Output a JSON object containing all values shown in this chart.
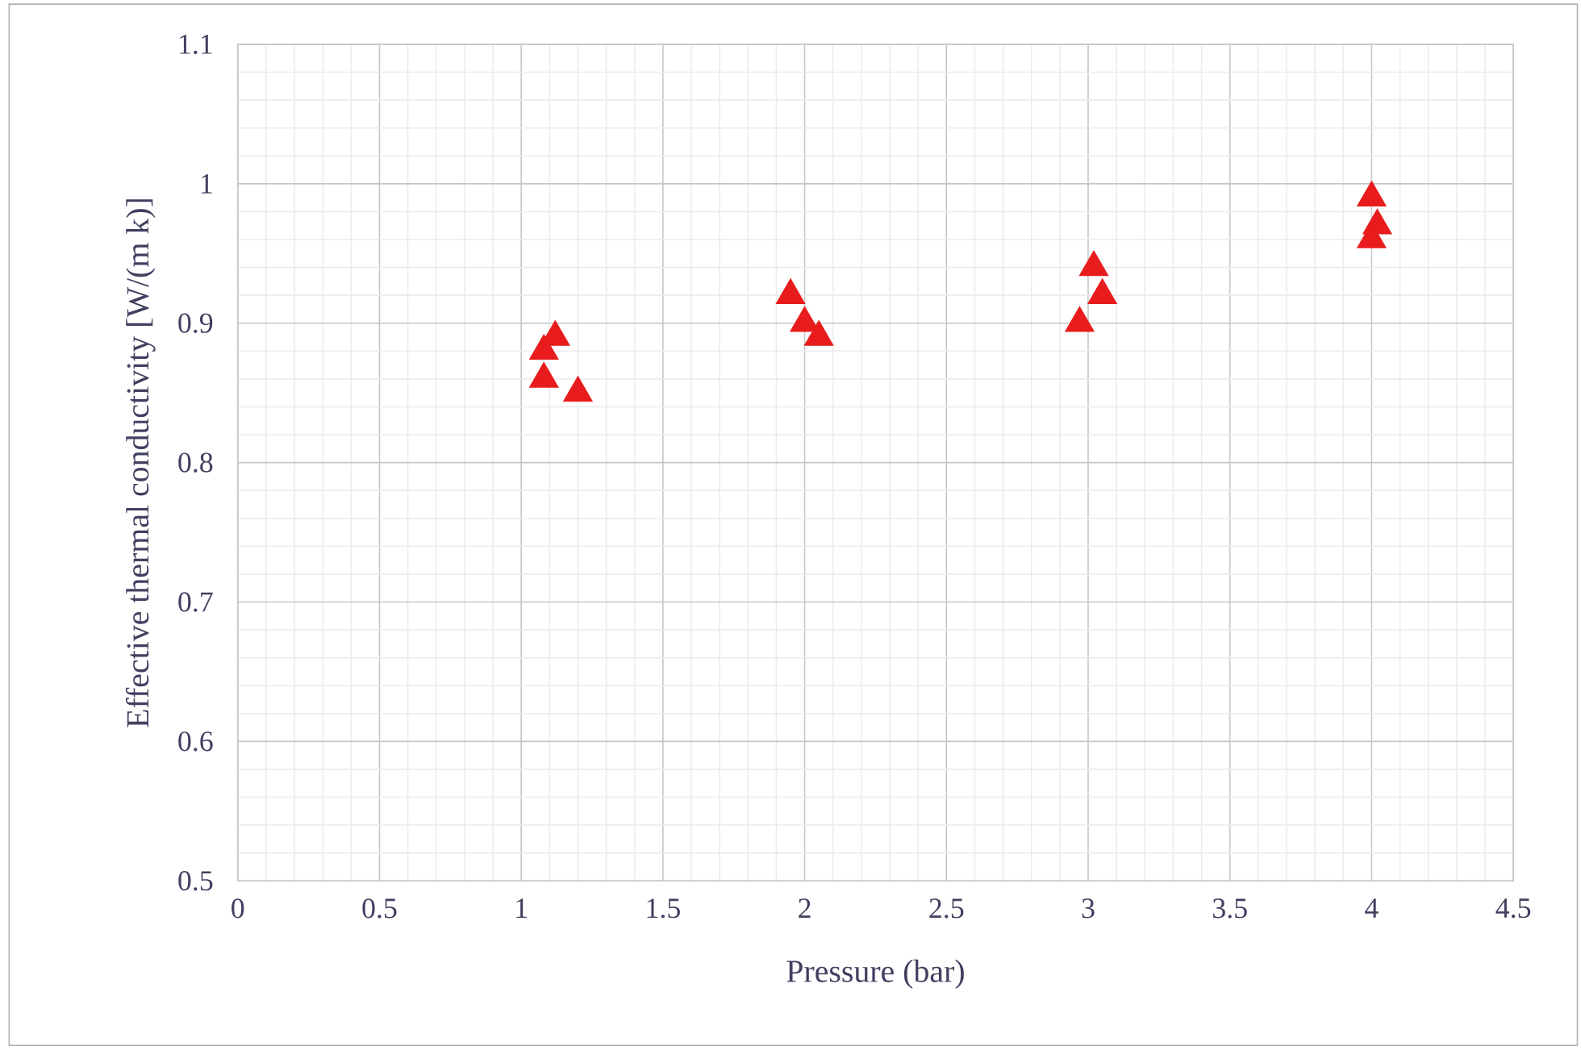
{
  "chart_data": {
    "type": "scatter",
    "xlabel": "Pressure (bar)",
    "ylabel": "Effective thermal conductivity [W/(m k)]",
    "x": [
      1.08,
      1.12,
      1.08,
      1.2,
      1.95,
      2.0,
      2.05,
      3.02,
      3.05,
      2.97,
      4.0,
      4.02,
      4.0
    ],
    "series": [
      {
        "color": "#e81c1c",
        "values": [
          0.88,
          0.89,
          0.86,
          0.85,
          0.92,
          0.9,
          0.89,
          0.94,
          0.92,
          0.9,
          0.99,
          0.97,
          0.96
        ]
      }
    ],
    "xlim": [
      0,
      4.5
    ],
    "ylim": [
      0.5,
      1.1
    ],
    "xticks": [
      0,
      0.5,
      1,
      1.5,
      2,
      2.5,
      3,
      3.5,
      4,
      4.5
    ],
    "yticks": [
      0.5,
      0.6,
      0.7,
      0.8,
      0.9,
      1,
      1.1
    ],
    "grid": true,
    "marker": "triangle"
  }
}
